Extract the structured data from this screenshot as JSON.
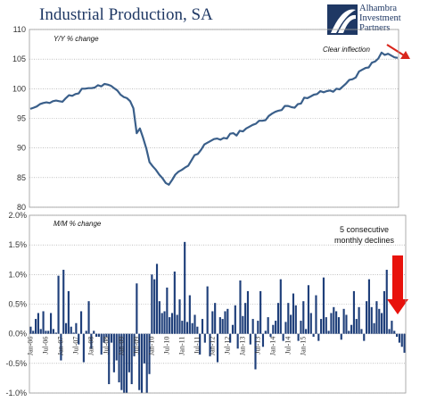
{
  "title": "Industrial Production, SA",
  "logo": {
    "lines": [
      "Alhambra",
      "Investment",
      "Partners"
    ],
    "colors": {
      "primary": "#1f3864",
      "accent": "#ffffff"
    }
  },
  "chart_data": [
    {
      "type": "line",
      "title": "",
      "ylabel": "Y/Y % change",
      "ylim": [
        80,
        110
      ],
      "yticks": [
        "80",
        "85",
        "90",
        "95",
        "100",
        "105",
        "110"
      ],
      "grid": true,
      "color": "#3a5f8a",
      "annotation": "Clear inflection",
      "annotation_arrow_color": "#d9261c",
      "x_start": "Jan-06",
      "x_step": "month",
      "values": [
        96.6,
        96.8,
        97.0,
        97.4,
        97.6,
        97.7,
        97.6,
        97.9,
        98.0,
        97.9,
        97.8,
        98.4,
        98.9,
        98.8,
        99.1,
        99.2,
        100.0,
        100.0,
        100.1,
        100.1,
        100.2,
        100.6,
        100.4,
        100.8,
        100.7,
        100.5,
        100.1,
        99.7,
        99.0,
        98.6,
        98.4,
        97.9,
        96.7,
        92.5,
        93.3,
        91.7,
        89.9,
        87.6,
        86.9,
        86.3,
        85.5,
        84.9,
        84.1,
        83.8,
        84.6,
        85.5,
        86.0,
        86.3,
        86.7,
        87.0,
        87.9,
        88.8,
        89.0,
        89.7,
        90.6,
        90.9,
        91.2,
        91.5,
        91.6,
        91.4,
        91.7,
        91.6,
        92.4,
        92.5,
        92.1,
        92.9,
        92.8,
        93.3,
        93.6,
        93.9,
        94.1,
        94.6,
        94.6,
        94.7,
        95.4,
        95.8,
        96.1,
        96.3,
        96.4,
        97.1,
        97.1,
        96.9,
        96.8,
        97.4,
        97.5,
        98.5,
        98.4,
        98.7,
        99.0,
        99.1,
        99.6,
        99.4,
        99.6,
        99.7,
        99.5,
        100.0,
        99.9,
        100.4,
        100.9,
        101.5,
        101.6,
        101.9,
        102.9,
        103.2,
        103.5,
        103.6,
        104.4,
        104.6,
        105.1,
        106.1,
        105.7,
        105.9,
        105.6,
        105.3,
        105.2
      ]
    },
    {
      "type": "bar",
      "title": "",
      "ylabel": "M/M % change",
      "ylim": [
        -1.0,
        2.0
      ],
      "yticks": [
        "-1.0%",
        "-0.5%",
        "0.0%",
        "0.5%",
        "1.0%",
        "1.5%",
        "2.0%"
      ],
      "grid": true,
      "color": "#1f3f7a",
      "annotation": [
        "5 consecutive",
        "monthly declines"
      ],
      "annotation_arrow_color": "#e8120c",
      "x_start": "Jan-06",
      "x_step": "month",
      "xtick_labels": [
        "Jan-06",
        "Jul-06",
        "Jan-07",
        "Jul-07",
        "Jan-08",
        "Jul-08",
        "Jan-09",
        "Jul-09",
        "Jan-10",
        "Jul-10",
        "Jan-11",
        "Jul-11",
        "Jan-12",
        "Jul-12",
        "Jan-13",
        "Jul-13",
        "Jan-14",
        "Jul-14",
        "Jan-15"
      ],
      "values": [
        0.12,
        0.05,
        0.25,
        0.35,
        0.08,
        0.38,
        0.05,
        0.05,
        0.35,
        0.08,
        0.02,
        0.98,
        -0.45,
        1.08,
        0.18,
        0.72,
        0.12,
        0.02,
        0.18,
        -0.18,
        0.38,
        -0.48,
        0.05,
        0.55,
        -0.25,
        0.05,
        -0.05,
        -0.05,
        -0.35,
        -0.15,
        -0.05,
        -0.85,
        -0.15,
        -0.65,
        -0.45,
        -0.82,
        -0.95,
        -1.05,
        -1.02,
        -0.65,
        -0.85,
        -0.38,
        0.85,
        -0.95,
        -1.05,
        -0.5,
        -1.05,
        -0.68,
        1.0,
        0.92,
        1.18,
        0.55,
        0.35,
        0.38,
        0.78,
        0.28,
        0.35,
        1.05,
        0.32,
        0.58,
        0.22,
        1.55,
        0.2,
        0.65,
        0.18,
        0.32,
        0.12,
        -0.35,
        0.25,
        -0.15,
        0.8,
        -0.38,
        0.38,
        0.52,
        -0.48,
        0.28,
        0.25,
        0.38,
        0.42,
        -0.15,
        0.15,
        0.48,
        -0.25,
        0.9,
        0.3,
        0.52,
        0.72,
        -0.18,
        0.25,
        -0.6,
        0.22,
        0.72,
        -0.22,
        0.05,
        0.28,
        -0.05,
        0.15,
        0.22,
        0.52,
        0.92,
        -0.12,
        0.2,
        0.52,
        0.32,
        0.68,
        0.48,
        -0.12,
        0.22,
        0.55,
        0.08,
        0.82,
        0.35,
        -0.05,
        0.65,
        -0.12,
        0.25,
        0.95,
        0.28,
        0.05,
        0.35,
        0.45,
        0.38,
        0.28,
        -0.1,
        0.42,
        0.32,
        0.05,
        0.15,
        0.72,
        0.25,
        0.45,
        0.08,
        -0.12,
        0.55,
        0.92,
        0.45,
        0.18,
        0.55,
        0.42,
        0.35,
        0.72,
        1.08,
        0.08,
        0.22,
        0.05,
        -0.05,
        -0.15,
        -0.22,
        -0.32
      ]
    }
  ]
}
